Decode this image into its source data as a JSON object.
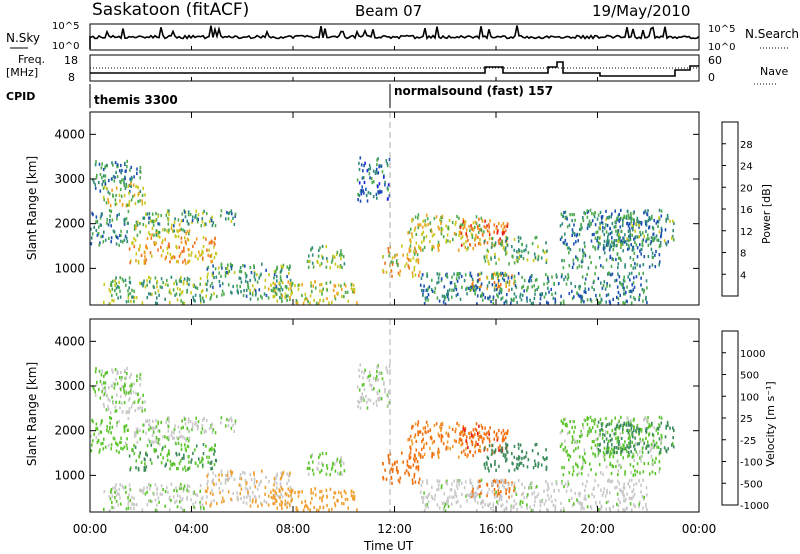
{
  "header": {
    "station": "Saskatoon (fitACF)",
    "beam": "Beam 07",
    "date": "19/May/2010"
  },
  "noise_panel": {
    "left_label": "N.Sky",
    "right_label": "N.Search",
    "yticks_left": [
      "10^5",
      "10^0"
    ],
    "yticks_right": [
      "10^5",
      "10^0"
    ]
  },
  "freq_panel": {
    "left_label_1": "Freq.",
    "left_label_2": "[MHz]",
    "right_label": "Nave",
    "yticks_left": [
      "18",
      "8"
    ],
    "yticks_right": [
      "60",
      "0"
    ]
  },
  "cpid": {
    "label": "CPID",
    "programs": [
      {
        "name": "themis 3300",
        "start_hour": 0
      },
      {
        "name": "normalsound (fast) 157",
        "start_hour": 12
      }
    ]
  },
  "power_panel": {
    "ylabel": "Slant Range [km]",
    "yticks": [
      "1000",
      "2000",
      "3000",
      "4000"
    ],
    "colorbar_label": "Power [dB]",
    "colorbar_ticks": [
      "4",
      "8",
      "12",
      "16",
      "20",
      "24",
      "28"
    ]
  },
  "velocity_panel": {
    "ylabel": "Slant Range [km]",
    "yticks": [
      "1000",
      "2000",
      "3000",
      "4000"
    ],
    "colorbar_label": "Velocity [m s⁻¹]",
    "colorbar_ticks": [
      "1000",
      "500",
      "100",
      "25",
      "-25",
      "-100",
      "-500",
      "-1000"
    ]
  },
  "xaxis": {
    "label": "Time UT",
    "ticks": [
      "00:00",
      "04:00",
      "08:00",
      "12:00",
      "16:00",
      "20:00",
      "00:00"
    ]
  },
  "colors": {
    "power_scale": [
      "#1b20e0",
      "#1b4fb0",
      "#2f8a7a",
      "#4caa4c",
      "#c8c81e",
      "#f0a020",
      "#f07020",
      "#e82010"
    ],
    "velocity_scale": [
      "#1c30c8",
      "#2f5fa0",
      "#3a8a5a",
      "#5cc42c",
      "#c8c8c8",
      "#f0a030",
      "#f07010",
      "#e81810"
    ]
  },
  "chart_data": {
    "type": "heatmap",
    "x_range_hours": [
      0,
      24
    ],
    "y_range_km": [
      180,
      4500
    ],
    "power_range_db": [
      0,
      32
    ],
    "velocity_range_ms": [
      -1200,
      1200
    ],
    "scatter_regions": [
      {
        "t": [
          0.0,
          2.0
        ],
        "r": [
          2700,
          3400
        ],
        "power": 10,
        "velocity": 25
      },
      {
        "t": [
          0.5,
          2.2
        ],
        "r": [
          2400,
          2900
        ],
        "power": 18,
        "velocity": 20
      },
      {
        "t": [
          0.0,
          1.5
        ],
        "r": [
          1500,
          2300
        ],
        "power": 10,
        "velocity": 50
      },
      {
        "t": [
          1.5,
          5.0
        ],
        "r": [
          1100,
          1700
        ],
        "power": 22,
        "velocity": 90
      },
      {
        "t": [
          1.5,
          4.0
        ],
        "r": [
          1700,
          2100
        ],
        "power": 16,
        "velocity": 20
      },
      {
        "t": [
          2.0,
          5.8
        ],
        "r": [
          1950,
          2300
        ],
        "power": 12,
        "velocity": 10
      },
      {
        "t": [
          0.5,
          4.5
        ],
        "r": [
          200,
          800
        ],
        "power": 14,
        "velocity": 15
      },
      {
        "t": [
          4.5,
          8.0
        ],
        "r": [
          300,
          1100
        ],
        "power": 12,
        "velocity": -20
      },
      {
        "t": [
          7.0,
          10.5
        ],
        "r": [
          200,
          700
        ],
        "power": 18,
        "velocity": -60
      },
      {
        "t": [
          8.5,
          10.0
        ],
        "r": [
          1000,
          1500
        ],
        "power": 14,
        "velocity": 30
      },
      {
        "t": [
          10.5,
          11.8
        ],
        "r": [
          2500,
          3500
        ],
        "power": 8,
        "velocity": 10
      },
      {
        "t": [
          11.5,
          13.0
        ],
        "r": [
          800,
          1500
        ],
        "power": 20,
        "velocity": -300
      },
      {
        "t": [
          12.5,
          15.5
        ],
        "r": [
          1400,
          2200
        ],
        "power": 18,
        "velocity": -120
      },
      {
        "t": [
          14.5,
          16.5
        ],
        "r": [
          1500,
          2100
        ],
        "power": 26,
        "velocity": -400
      },
      {
        "t": [
          15.0,
          16.8
        ],
        "r": [
          500,
          900
        ],
        "power": 22,
        "velocity": -200
      },
      {
        "t": [
          15.5,
          18.0
        ],
        "r": [
          1100,
          1700
        ],
        "power": 14,
        "velocity": 300
      },
      {
        "t": [
          13.0,
          22.0
        ],
        "r": [
          200,
          900
        ],
        "power": 10,
        "velocity": 5
      },
      {
        "t": [
          18.5,
          22.5
        ],
        "r": [
          1000,
          2300
        ],
        "power": 10,
        "velocity": 40
      },
      {
        "t": [
          20.0,
          23.0
        ],
        "r": [
          1500,
          2200
        ],
        "power": 12,
        "velocity": 150
      }
    ]
  }
}
